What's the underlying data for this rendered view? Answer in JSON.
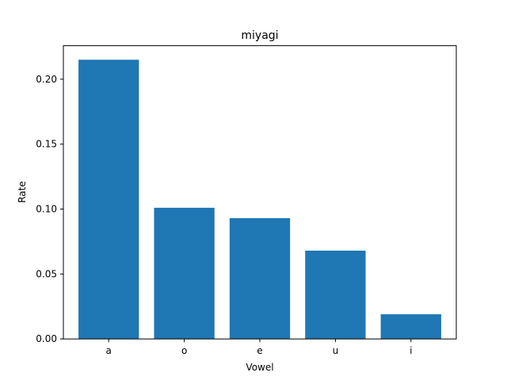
{
  "chart_data": {
    "type": "bar",
    "title": "miyagi",
    "xlabel": "Vowel",
    "ylabel": "Rate",
    "categories": [
      "a",
      "o",
      "e",
      "u",
      "i"
    ],
    "values": [
      0.215,
      0.101,
      0.093,
      0.068,
      0.019
    ],
    "ylim": [
      0,
      0.2258
    ],
    "yticks": [
      0.0,
      0.05,
      0.1,
      0.15,
      0.2
    ],
    "ytick_labels": [
      "0.00",
      "0.05",
      "0.10",
      "0.15",
      "0.20"
    ],
    "grid": false,
    "bar_color": "#1f77b4"
  }
}
